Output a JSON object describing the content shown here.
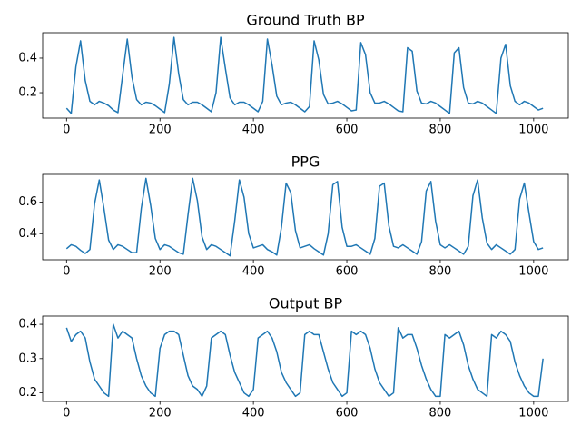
{
  "chart_data": [
    {
      "type": "line",
      "title": "Ground Truth BP",
      "color": "#1f77b4",
      "x": [
        0,
        10,
        20,
        30,
        40,
        50,
        60,
        70,
        80,
        90,
        100,
        110,
        120,
        130,
        140,
        150,
        160,
        170,
        180,
        190,
        200,
        210,
        220,
        230,
        240,
        250,
        260,
        270,
        280,
        290,
        300,
        310,
        320,
        330,
        340,
        350,
        360,
        370,
        380,
        390,
        400,
        410,
        420,
        430,
        440,
        450,
        460,
        470,
        480,
        490,
        500,
        510,
        520,
        530,
        540,
        550,
        560,
        570,
        580,
        590,
        600,
        610,
        620,
        630,
        640,
        650,
        660,
        670,
        680,
        690,
        700,
        710,
        720,
        730,
        740,
        750,
        760,
        770,
        780,
        790,
        800,
        810,
        820,
        830,
        840,
        850,
        860,
        870,
        880,
        890,
        900,
        910,
        920,
        930,
        940,
        950,
        960,
        970,
        980,
        990,
        1000,
        1010,
        1020
      ],
      "values": [
        0.11,
        0.08,
        0.35,
        0.5,
        0.27,
        0.15,
        0.13,
        0.15,
        0.14,
        0.125,
        0.1,
        0.085,
        0.3,
        0.51,
        0.29,
        0.16,
        0.13,
        0.145,
        0.14,
        0.125,
        0.105,
        0.085,
        0.25,
        0.52,
        0.31,
        0.16,
        0.13,
        0.145,
        0.145,
        0.13,
        0.11,
        0.09,
        0.2,
        0.52,
        0.34,
        0.17,
        0.13,
        0.145,
        0.145,
        0.13,
        0.11,
        0.09,
        0.15,
        0.51,
        0.36,
        0.18,
        0.13,
        0.14,
        0.145,
        0.13,
        0.11,
        0.09,
        0.12,
        0.5,
        0.39,
        0.19,
        0.135,
        0.14,
        0.15,
        0.135,
        0.115,
        0.095,
        0.1,
        0.49,
        0.42,
        0.2,
        0.14,
        0.14,
        0.15,
        0.135,
        0.115,
        0.095,
        0.09,
        0.46,
        0.44,
        0.21,
        0.14,
        0.135,
        0.15,
        0.14,
        0.12,
        0.1,
        0.08,
        0.43,
        0.46,
        0.23,
        0.14,
        0.135,
        0.15,
        0.14,
        0.12,
        0.1,
        0.08,
        0.4,
        0.48,
        0.24,
        0.15,
        0.13,
        0.15,
        0.14,
        0.12,
        0.1,
        0.11
      ],
      "xlim": [
        -51.15,
        1074.15
      ],
      "xticks": [
        0,
        200,
        400,
        600,
        800,
        1000
      ],
      "ylim": [
        0.053,
        0.547
      ],
      "yticks": [
        0.2,
        0.4
      ]
    },
    {
      "type": "line",
      "title": "PPG",
      "color": "#1f77b4",
      "x": [
        0,
        10,
        20,
        30,
        40,
        50,
        60,
        70,
        80,
        90,
        100,
        110,
        120,
        130,
        140,
        150,
        160,
        170,
        180,
        190,
        200,
        210,
        220,
        230,
        240,
        250,
        260,
        270,
        280,
        290,
        300,
        310,
        320,
        330,
        340,
        350,
        360,
        370,
        380,
        390,
        400,
        410,
        420,
        430,
        440,
        450,
        460,
        470,
        480,
        490,
        500,
        510,
        520,
        530,
        540,
        550,
        560,
        570,
        580,
        590,
        600,
        610,
        620,
        630,
        640,
        650,
        660,
        670,
        680,
        690,
        700,
        710,
        720,
        730,
        740,
        750,
        760,
        770,
        780,
        790,
        800,
        810,
        820,
        830,
        840,
        850,
        860,
        870,
        880,
        890,
        900,
        910,
        920,
        930,
        940,
        950,
        960,
        970,
        980,
        990,
        1000,
        1010,
        1020
      ],
      "values": [
        0.305,
        0.33,
        0.32,
        0.295,
        0.275,
        0.3,
        0.59,
        0.74,
        0.56,
        0.36,
        0.3,
        0.33,
        0.32,
        0.3,
        0.28,
        0.28,
        0.56,
        0.75,
        0.58,
        0.37,
        0.3,
        0.33,
        0.32,
        0.3,
        0.28,
        0.27,
        0.52,
        0.75,
        0.61,
        0.38,
        0.3,
        0.33,
        0.32,
        0.3,
        0.28,
        0.26,
        0.48,
        0.74,
        0.63,
        0.4,
        0.31,
        0.32,
        0.33,
        0.3,
        0.285,
        0.265,
        0.44,
        0.72,
        0.66,
        0.42,
        0.31,
        0.32,
        0.33,
        0.305,
        0.285,
        0.265,
        0.4,
        0.71,
        0.73,
        0.44,
        0.32,
        0.32,
        0.33,
        0.31,
        0.29,
        0.27,
        0.37,
        0.7,
        0.72,
        0.45,
        0.32,
        0.31,
        0.33,
        0.31,
        0.29,
        0.27,
        0.35,
        0.67,
        0.73,
        0.48,
        0.33,
        0.31,
        0.33,
        0.31,
        0.29,
        0.27,
        0.32,
        0.64,
        0.74,
        0.5,
        0.34,
        0.3,
        0.33,
        0.31,
        0.29,
        0.27,
        0.3,
        0.62,
        0.72,
        0.53,
        0.35,
        0.3,
        0.31
      ],
      "xlim": [
        -51.15,
        1074.15
      ],
      "xticks": [
        0,
        200,
        400,
        600,
        800,
        1000
      ],
      "ylim": [
        0.235,
        0.775
      ],
      "yticks": [
        0.4,
        0.6
      ]
    },
    {
      "type": "line",
      "title": "Output BP",
      "color": "#1f77b4",
      "x": [
        0,
        10,
        20,
        30,
        40,
        50,
        60,
        70,
        80,
        90,
        100,
        110,
        120,
        130,
        140,
        150,
        160,
        170,
        180,
        190,
        200,
        210,
        220,
        230,
        240,
        250,
        260,
        270,
        280,
        290,
        300,
        310,
        320,
        330,
        340,
        350,
        360,
        370,
        380,
        390,
        400,
        410,
        420,
        430,
        440,
        450,
        460,
        470,
        480,
        490,
        500,
        510,
        520,
        530,
        540,
        550,
        560,
        570,
        580,
        590,
        600,
        610,
        620,
        630,
        640,
        650,
        660,
        670,
        680,
        690,
        700,
        710,
        720,
        730,
        740,
        750,
        760,
        770,
        780,
        790,
        800,
        810,
        820,
        830,
        840,
        850,
        860,
        870,
        880,
        890,
        900,
        910,
        920,
        930,
        940,
        950,
        960,
        970,
        980,
        990,
        1000,
        1010,
        1020
      ],
      "values": [
        0.39,
        0.35,
        0.37,
        0.38,
        0.36,
        0.29,
        0.24,
        0.22,
        0.2,
        0.19,
        0.4,
        0.36,
        0.38,
        0.37,
        0.36,
        0.3,
        0.25,
        0.22,
        0.2,
        0.19,
        0.33,
        0.37,
        0.38,
        0.38,
        0.37,
        0.31,
        0.25,
        0.22,
        0.21,
        0.19,
        0.22,
        0.36,
        0.37,
        0.38,
        0.37,
        0.31,
        0.26,
        0.23,
        0.2,
        0.19,
        0.21,
        0.36,
        0.37,
        0.38,
        0.36,
        0.32,
        0.26,
        0.23,
        0.21,
        0.19,
        0.2,
        0.37,
        0.38,
        0.37,
        0.37,
        0.32,
        0.27,
        0.23,
        0.21,
        0.19,
        0.2,
        0.38,
        0.37,
        0.38,
        0.37,
        0.33,
        0.27,
        0.23,
        0.21,
        0.19,
        0.2,
        0.39,
        0.36,
        0.37,
        0.37,
        0.33,
        0.28,
        0.24,
        0.21,
        0.19,
        0.19,
        0.37,
        0.36,
        0.37,
        0.38,
        0.34,
        0.28,
        0.24,
        0.21,
        0.2,
        0.19,
        0.37,
        0.36,
        0.38,
        0.37,
        0.35,
        0.29,
        0.25,
        0.22,
        0.2,
        0.19,
        0.19,
        0.3
      ],
      "xlim": [
        -51.15,
        1074.15
      ],
      "xticks": [
        0,
        200,
        400,
        600,
        800,
        1000
      ],
      "ylim": [
        0.175,
        0.424
      ],
      "yticks": [
        0.2,
        0.3,
        0.4
      ]
    }
  ]
}
